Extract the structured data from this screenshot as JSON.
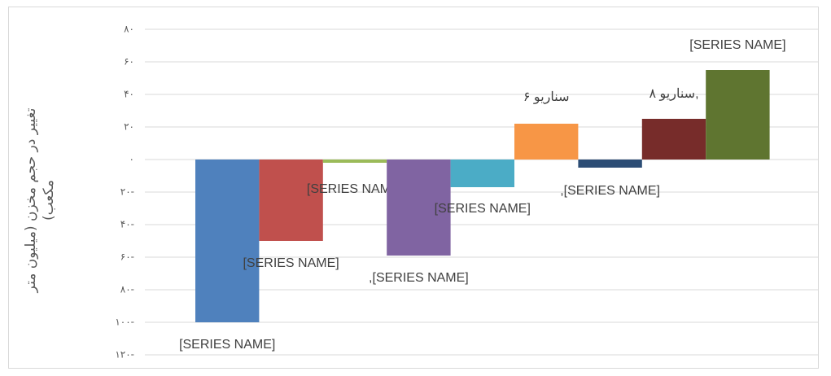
{
  "chart_data": {
    "type": "bar",
    "y_label": "تغییر در حجم مخزن (میلیون متر مکعب)",
    "categories": [
      null,
      null,
      null,
      null,
      null,
      null,
      null,
      null,
      null
    ],
    "values": [
      -100,
      -50,
      -2,
      -59,
      -17,
      22,
      -5,
      25,
      55
    ],
    "colors": [
      "#4f81bd",
      "#c0504d",
      "#9bbb59",
      "#8064a2",
      "#4bacc6",
      "#f79646",
      "#2c4d75",
      "#772c2a",
      "#5f7530"
    ],
    "annotations": [
      "[SERIES NAME]",
      "[SERIES NAME]",
      "[SERIES NAME]",
      ",[SERIES NAME]",
      "[SERIES NAME]",
      "سناریو ۶",
      ",[SERIES NAME]",
      "سناریو ۸,",
      "[SERIES NAME]"
    ],
    "ylim": [
      -120,
      80
    ],
    "yticks": [
      {
        "value": -120,
        "label": "۱۲۰-"
      },
      {
        "value": -100,
        "label": "۱۰۰-"
      },
      {
        "value": -80,
        "label": "۸۰-"
      },
      {
        "value": -60,
        "label": "۶۰-"
      },
      {
        "value": -40,
        "label": "۴۰-"
      },
      {
        "value": -20,
        "label": "۲۰-"
      },
      {
        "value": 0,
        "label": "۰"
      },
      {
        "value": 20,
        "label": "۲۰"
      },
      {
        "value": 40,
        "label": "۴۰"
      },
      {
        "value": 60,
        "label": "۶۰"
      },
      {
        "value": 80,
        "label": "۸۰"
      }
    ],
    "grid": true
  }
}
